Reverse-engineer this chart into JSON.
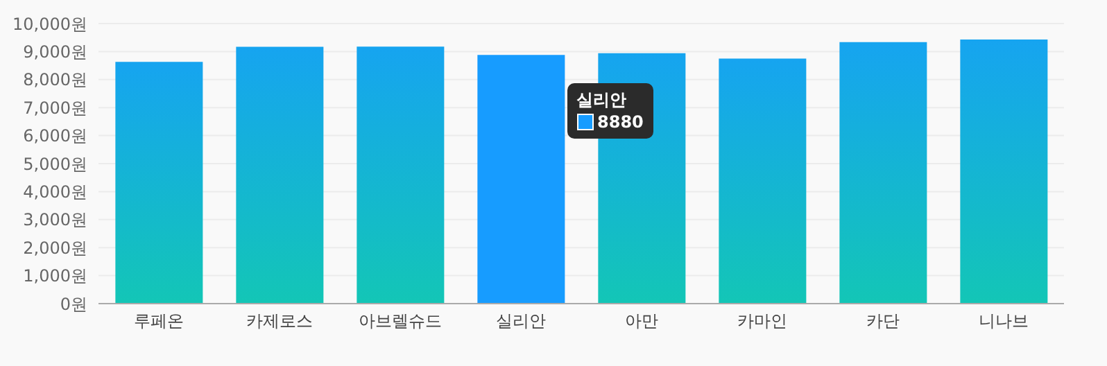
{
  "chart_data": {
    "type": "bar",
    "categories": [
      "루페온",
      "카제로스",
      "아브렐슈드",
      "실리안",
      "아만",
      "카마인",
      "카단",
      "니나브"
    ],
    "values": [
      8630,
      9170,
      9180,
      8880,
      8940,
      8750,
      9340,
      9430
    ],
    "colors": [
      "#16a4f0",
      "#16a4f0",
      "#16a4f0",
      "#179cff",
      "#16a4f0",
      "#16a4f0",
      "#16a4f0",
      "#16a4f0"
    ],
    "ylim": [
      0,
      10000
    ],
    "yticks": [
      {
        "value": 0,
        "label": "0원"
      },
      {
        "value": 1000,
        "label": "1,000원"
      },
      {
        "value": 2000,
        "label": "2,000원"
      },
      {
        "value": 3000,
        "label": "3,000원"
      },
      {
        "value": 4000,
        "label": "4,000원"
      },
      {
        "value": 5000,
        "label": "5,000원"
      },
      {
        "value": 6000,
        "label": "6,000원"
      },
      {
        "value": 7000,
        "label": "7,000원"
      },
      {
        "value": 8000,
        "label": "8,000원"
      },
      {
        "value": 9000,
        "label": "9,000원"
      },
      {
        "value": 10000,
        "label": "10,000원"
      }
    ],
    "grid": "y",
    "annotations": [
      "8880"
    ]
  }
}
